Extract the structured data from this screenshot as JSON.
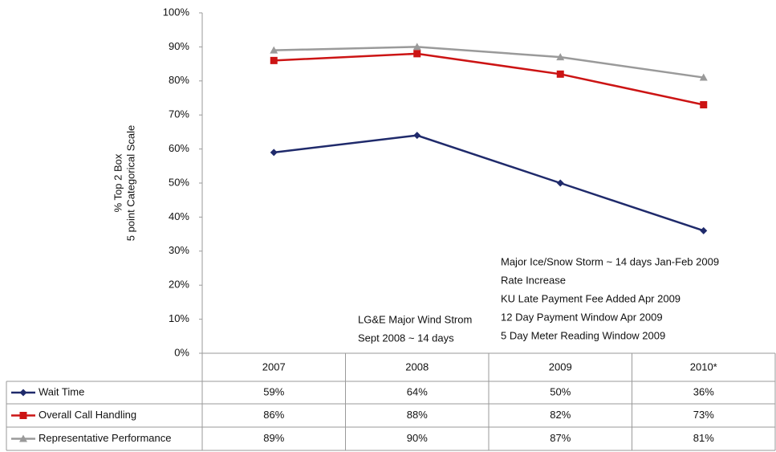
{
  "chart_data": {
    "type": "line",
    "y_label": [
      "% Top 2 Box",
      "5 point Categorical Scale"
    ],
    "categories": [
      "2007",
      "2008",
      "2009",
      "2010*"
    ],
    "series": [
      {
        "name": "Wait Time",
        "color": "#1f2a6b",
        "marker": "diamond",
        "values": [
          59,
          64,
          50,
          36
        ],
        "value_labels": [
          "59%",
          "64%",
          "50%",
          "36%"
        ]
      },
      {
        "name": "Overall Call Handling",
        "color": "#cc1414",
        "marker": "square",
        "values": [
          86,
          88,
          82,
          73
        ],
        "value_labels": [
          "86%",
          "88%",
          "82%",
          "73%"
        ]
      },
      {
        "name": "Representative Performance",
        "color": "#9a9a9a",
        "marker": "triangle",
        "values": [
          89,
          90,
          87,
          81
        ],
        "value_labels": [
          "89%",
          "90%",
          "87%",
          "81%"
        ]
      }
    ],
    "ylim": [
      0,
      100
    ],
    "yticks": [
      {
        "value": 0,
        "label": "0%"
      },
      {
        "value": 10,
        "label": "10%"
      },
      {
        "value": 20,
        "label": "20%"
      },
      {
        "value": 30,
        "label": "30%"
      },
      {
        "value": 40,
        "label": "40%"
      },
      {
        "value": 50,
        "label": "50%"
      },
      {
        "value": 60,
        "label": "60%"
      },
      {
        "value": 70,
        "label": "70%"
      },
      {
        "value": 80,
        "label": "80%"
      },
      {
        "value": 90,
        "label": "90%"
      },
      {
        "value": 100,
        "label": "100%"
      }
    ],
    "annotations": [
      {
        "lines": [
          "LG&E Major Wind Strom",
          "Sept 2008 ~ 14 days"
        ]
      },
      {
        "lines": [
          "Major Ice/Snow Storm ~ 14 days Jan-Feb 2009",
          "Rate Increase",
          "KU Late Payment Fee Added Apr 2009",
          "12 Day Payment Window Apr  2009",
          "5 Day Meter Reading Window 2009"
        ]
      }
    ]
  }
}
